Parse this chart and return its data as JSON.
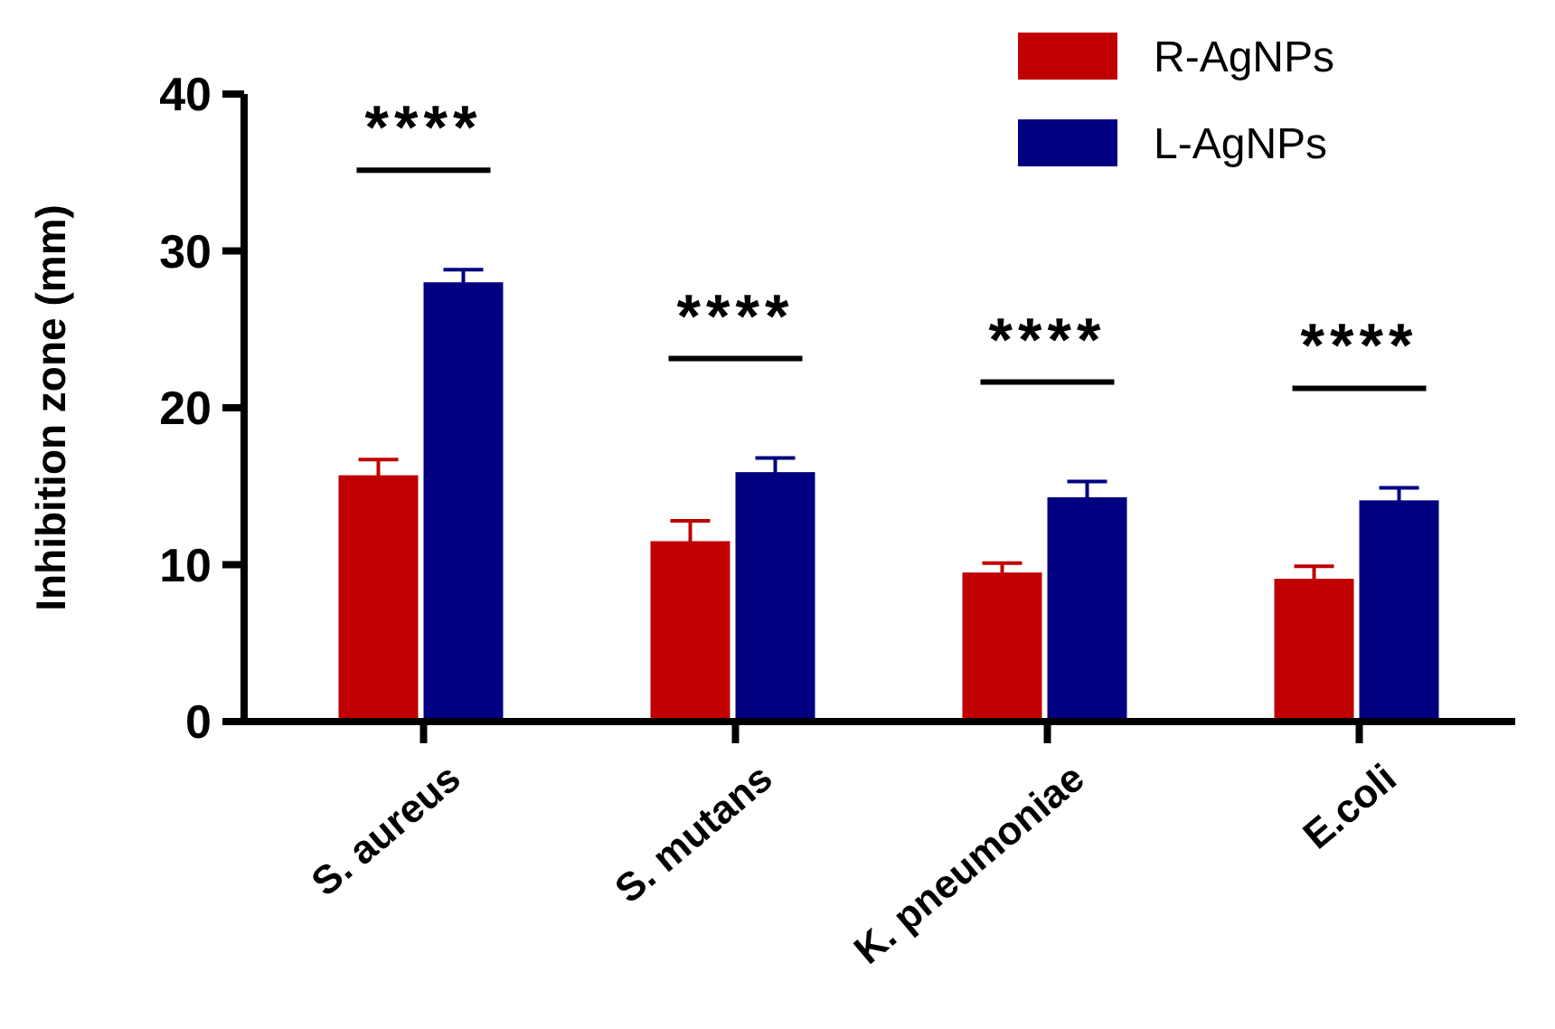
{
  "chart_data": {
    "type": "bar",
    "ylabel": "Inhibition zone (mm)",
    "categories": [
      "S. aureus",
      "S. mutans",
      "K. pneumoniae",
      "E.coli"
    ],
    "series": [
      {
        "name": "R-AgNPs",
        "color": "#c00000",
        "values": [
          15.7,
          11.5,
          9.5,
          9.1
        ],
        "errors": [
          1.0,
          1.3,
          0.6,
          0.8
        ]
      },
      {
        "name": "L-AgNPs",
        "color": "#000080",
        "values": [
          28.0,
          15.9,
          14.3,
          14.1
        ],
        "errors": [
          0.8,
          0.9,
          1.0,
          0.8
        ]
      }
    ],
    "ylim": [
      0,
      40
    ],
    "yticks": [
      0,
      10,
      20,
      30,
      40
    ],
    "grid": false,
    "legend": "top right",
    "annotations": [
      "****",
      "****",
      "****",
      "****"
    ]
  }
}
